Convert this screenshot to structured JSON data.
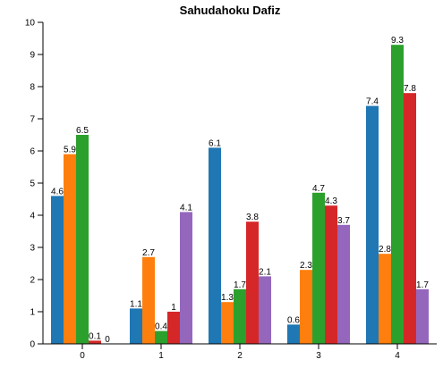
{
  "chart_data": {
    "type": "bar",
    "title": "Sahudahoku Dafiz",
    "xlabel": "",
    "ylabel": "",
    "categories": [
      "0",
      "1",
      "2",
      "3",
      "4"
    ],
    "ylim": [
      0,
      10
    ],
    "yticks": [
      0,
      1,
      2,
      3,
      4,
      5,
      6,
      7,
      8,
      9,
      10
    ],
    "grid": false,
    "legend": "none",
    "series": [
      {
        "color": "#1f77b4",
        "values": [
          4.6,
          1.1,
          6.1,
          0.6,
          7.4
        ]
      },
      {
        "color": "#ff7f0e",
        "values": [
          5.9,
          2.7,
          1.3,
          2.3,
          2.8
        ]
      },
      {
        "color": "#2ca02c",
        "values": [
          6.5,
          0.4,
          1.7,
          4.7,
          9.3
        ]
      },
      {
        "color": "#d62728",
        "values": [
          0.1,
          1,
          3.8,
          4.3,
          7.8
        ]
      },
      {
        "color": "#9467bd",
        "values": [
          0,
          4.1,
          2.1,
          3.7,
          1.7
        ]
      }
    ]
  }
}
